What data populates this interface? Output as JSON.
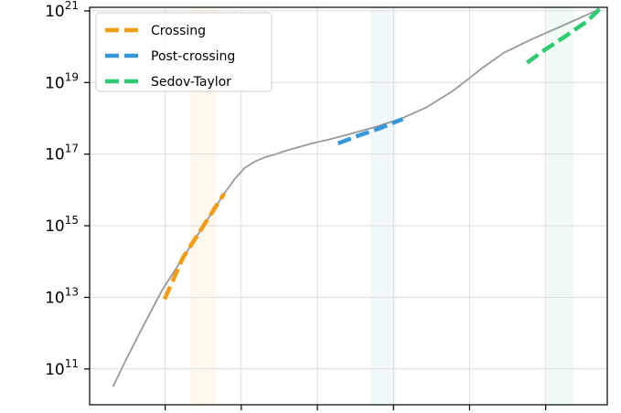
{
  "chart_data": {
    "type": "line",
    "title": "",
    "xlabel": "",
    "ylabel": "",
    "y_scale": "log",
    "ylim_log10": [
      10.0,
      21.1
    ],
    "xlim": [
      0,
      100
    ],
    "grid": true,
    "legend_placement": "top-left",
    "y_ticks": [
      {
        "base": "10",
        "exp": "11",
        "log10": 11
      },
      {
        "base": "10",
        "exp": "13",
        "log10": 13
      },
      {
        "base": "10",
        "exp": "15",
        "log10": 15
      },
      {
        "base": "10",
        "exp": "17",
        "log10": 17
      },
      {
        "base": "10",
        "exp": "19",
        "log10": 19
      },
      {
        "base": "10",
        "exp": "21",
        "log10": 21
      }
    ],
    "x_ticks": [
      14.6,
      29.3,
      44.0,
      58.7,
      73.4,
      88.1
    ],
    "series": [
      {
        "name": "",
        "color": "#999999",
        "style": "solid",
        "x": [
          4.5,
          7,
          10,
          14,
          18,
          22,
          26,
          28,
          30,
          32,
          34,
          36,
          38,
          40,
          43,
          46,
          50,
          55,
          60,
          65,
          70,
          73,
          76,
          80,
          85,
          90,
          95,
          98.5
        ],
        "log10_y": [
          10.5,
          11.25,
          12.1,
          13.2,
          14.1,
          15.0,
          15.9,
          16.3,
          16.62,
          16.8,
          16.92,
          17.0,
          17.1,
          17.18,
          17.3,
          17.4,
          17.55,
          17.75,
          17.98,
          18.3,
          18.75,
          19.08,
          19.42,
          19.83,
          20.18,
          20.5,
          20.82,
          21.05
        ]
      },
      {
        "name": "Crossing",
        "color": "#f39c12",
        "style": "dashed",
        "x": [
          14.5,
          18,
          22,
          26
        ],
        "log10_y": [
          12.95,
          14.1,
          15.0,
          15.9
        ]
      },
      {
        "name": "Post-crossing",
        "color": "#3498db",
        "style": "dashed",
        "x": [
          48,
          52,
          56,
          60.5
        ],
        "log10_y": [
          17.3,
          17.52,
          17.72,
          17.98
        ]
      },
      {
        "name": "Sedov-Taylor",
        "color": "#2ecc71",
        "style": "dashed",
        "x": [
          84.5,
          88,
          92,
          96,
          98.5
        ],
        "log10_y": [
          19.55,
          19.92,
          20.3,
          20.7,
          21.05
        ]
      }
    ],
    "shaded_regions": [
      {
        "name": "crossing-band",
        "x0": 19.5,
        "x1": 24.5,
        "color": "#f39c12"
      },
      {
        "name": "post-crossing-band",
        "x0": 54.3,
        "x1": 59.2,
        "color": "#3498db"
      },
      {
        "name": "sedov-taylor-band",
        "x0": 88.5,
        "x1": 93.5,
        "color": "#2ecc71"
      }
    ],
    "legend": [
      {
        "label": "Crossing",
        "color": "#f39c12"
      },
      {
        "label": "Post-crossing",
        "color": "#3498db"
      },
      {
        "label": "Sedov-Taylor",
        "color": "#2ecc71"
      }
    ]
  }
}
